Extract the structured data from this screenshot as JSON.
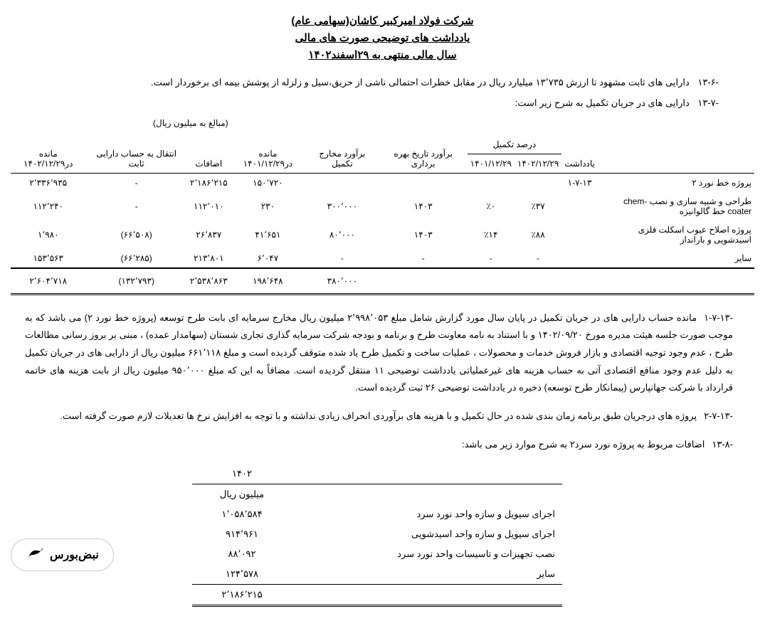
{
  "header": {
    "company": "شرکت فولاد امیرکبیر کاشان(سهامی عام)",
    "subtitle": "یادداشت های توضیحی صورت های مالی",
    "period": "سال مالی منتهی به ۲۹اسفند۱۴۰۲"
  },
  "notes": {
    "n1_label": "-۱۳-۶",
    "n1_text": "دارایی های ثابت مشهود تا ارزش ۱۳٬۷۳۵ میلیارد ریال در مقابل خطرات احتمالی ناشی از حریق،سیل و زلزله از پوشش بیمه ای  برخوردار است.",
    "n2_label": "-۱۳-۷",
    "n2_text": "دارایی های در جریان تکمیل به شرح زیر است:"
  },
  "table1": {
    "unit": "(مبالغ به میلیون ریال)",
    "headers": {
      "desc": "یادداشت",
      "pct_group": "درصد تکمیل",
      "pct_1402": "۱۴۰۲/۱۲/۲۹",
      "pct_1401": "۱۴۰۱/۱۲/۲۹",
      "date": "برآورد تاریخ بهره برداری",
      "cost": "برآورد مخارج تکمیل",
      "bal_1401": "مانده در۱۴۰۱/۱۲/۲۹",
      "additions": "اضافات",
      "transfer": "انتقال به حساب دارایی ثابت",
      "bal_1402": "مانده در۱۴۰۲/۱۲/۲۹"
    },
    "rows": [
      {
        "desc": "پروژه خط نورد ۲",
        "note": "۱-۷-۱۳",
        "p02": "",
        "p01": "",
        "d": "",
        "c": "",
        "b01": "۱۵۰٬۷۲۰",
        "add": "۲٬۱۸۶٬۲۱۵",
        "tr": "-",
        "b02": "۲٬۳۳۶٬۹۳۵"
      },
      {
        "desc": "طراحی و شبیه سازی و نصب chem-coater خط گالوانیزه",
        "note": "",
        "p02": "٪۳۷",
        "p01": "٪۰",
        "d": "۱۴۰۳",
        "c": "۳۰۰٬۰۰۰",
        "b01": "۲۳۰",
        "add": "۱۱۲٬۰۱۰",
        "tr": "-",
        "b02": "۱۱۲٬۲۴۰"
      },
      {
        "desc": "پروژه اصلاح عیوب اسکلت فلزی اسیدشویی و بارانداز",
        "note": "",
        "p02": "٪۸۸",
        "p01": "٪۱۴",
        "d": "۱۴۰۳",
        "c": "۸۰٬۰۰۰",
        "b01": "۴۱٬۶۵۱",
        "add": "۲۶٬۸۳۷",
        "tr": "(۶۶٬۵۰۸)",
        "b02": "۱٬۹۸۰"
      },
      {
        "desc": "سایر",
        "note": "",
        "p02": "-",
        "p01": "-",
        "d": "-",
        "c": "-",
        "b01": "۶٬۰۴۷",
        "add": "۲۱۳٬۸۰۱",
        "tr": "(۶۶٬۲۸۵)",
        "b02": "۱۵۳٬۵۶۳"
      }
    ],
    "total": {
      "c": "۳۸۰٬۰۰۰",
      "b01": "۱۹۸٬۶۴۸",
      "add": "۲٬۵۳۸٬۸۶۳",
      "tr": "(۱۳۲٬۷۹۳)",
      "b02": "۲٬۶۰۴٬۷۱۸"
    }
  },
  "paras": {
    "p1_label": "-۱-۷-۱۳",
    "p1_text": "مانده حساب دارایی های در جریان تکمیل در پایان سال مورد گزارش شامل مبلغ ۲٬۹۹۸٬۰۵۳  میلیون ریال مخارج سرمایه ای بابت طرح توسعه (پروژه خط نورد ۲) می باشد که به موجب صورت جلسه هیئت مدیره مورخ ۱۴۰۲/۰۹/۲۰ و با استناد به نامه معاونت طرح و برنامه و بودجه شرکت سرمایه گذاری تجاری شستان (سهامدار عمده) ، مبنی بر بروز رسانی مطالعات طرح ، عدم وجود توجیه اقتصادی و بازار فروش خدمات و محصولات ، عملیات ساخت و تکمیل طرح یاد شده متوقف گردیده است و مبلغ ۶۶۱٬۱۱۸ میلیون ریال از دارایی های در جریان تکمیل به دلیل عدم وجود منافع اقتصادی آتی به حساب هزینه های غیرعملیاتی یادداشت توضیحی ۱۱ منتقل گردیده است. مضافاً به این که مبلغ ۹۵۰٬۰۰۰ میلیون ریال از بابت هزینه های خاتمه قرارداد با شرکت جهانپارس (پیمانکار طرح توسعه) ذخیره در یادداشت توضیحی ۲۶ ثبت گردیده است.",
    "p2_label": "-۲-۷-۱۳",
    "p2_text": "پروژه های درجریان طبق برنامه زمان بندی شده در حال تکمیل و با هزینه های برآوردی انحراف زیادی نداشته و با توجه به افزایش نرخ ها تعدیلات لازم صورت گرفته است.",
    "p3_label": "-۱۳-۸",
    "p3_text": "اضافات مربوط به پروژه نورد سرد۲ به شرح موارد زیر می باشد:"
  },
  "table2": {
    "year": "۱۴۰۲",
    "unit": "میلیون ریال",
    "rows": [
      {
        "lbl": "اجرای سیویل و سازه واحد نورد سرد",
        "val": "۱٬۰۵۸٬۵۸۴"
      },
      {
        "lbl": "اجرای سیویل و سازه واحد اسیدشویی",
        "val": "۹۱۴٬۹۶۱"
      },
      {
        "lbl": "نصب تجهیزات و تاسیسات واحد نورد سرد",
        "val": "۸۸٬۰۹۲"
      },
      {
        "lbl": "سایر",
        "val": "۱۲۴٬۵۷۸"
      }
    ],
    "total": "۲٬۱۸۶٬۲۱۵"
  },
  "logo": {
    "text": "نبض‌بورس"
  }
}
